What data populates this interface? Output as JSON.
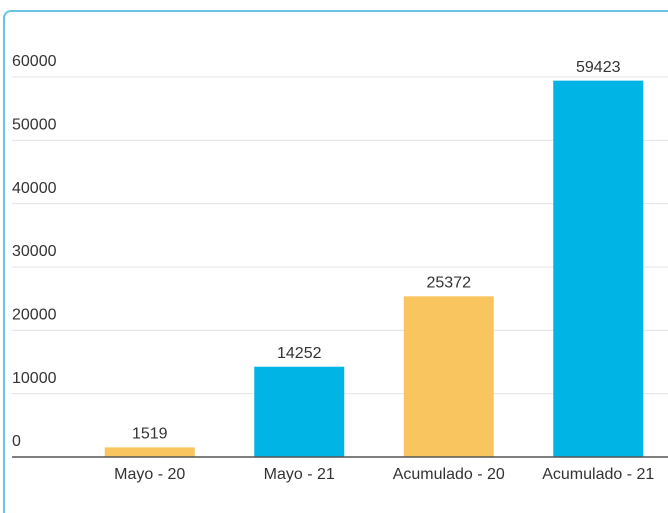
{
  "chart_data": {
    "type": "bar",
    "categories": [
      "Mayo - 20",
      "Mayo - 21",
      "Acumulado - 20",
      "Acumulado - 21"
    ],
    "values": [
      1519,
      14252,
      25372,
      59423
    ],
    "colors": [
      "#f9c55e",
      "#00b4e6",
      "#f9c55e",
      "#00b4e6"
    ],
    "ylim": [
      0,
      60000
    ],
    "yticks": [
      0,
      10000,
      20000,
      30000,
      40000,
      50000,
      60000
    ],
    "grid": true
  }
}
